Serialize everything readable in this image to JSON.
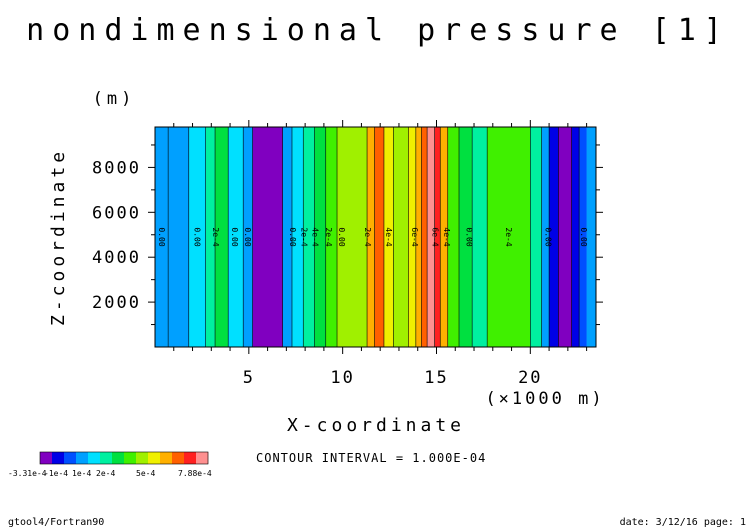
{
  "chart_data": {
    "type": "contour",
    "title": "nondimensional pressure [1]",
    "xlabel": "X-coordinate",
    "xunit": "(×1000 m)",
    "ylabel": "Z-coordinate",
    "yunit": "(m)",
    "xlim": [
      0,
      23.5
    ],
    "ylim": [
      0,
      9800
    ],
    "x_ticks": [
      5,
      10,
      15,
      20
    ],
    "x_tick_labels": [
      "5",
      "10",
      "15",
      "20"
    ],
    "y_ticks": [
      2000,
      4000,
      6000,
      8000
    ],
    "y_tick_labels": [
      "2000",
      "4000",
      "6000",
      "8000"
    ],
    "contour_interval_text": "CONTOUR INTERVAL = 1.000E-04",
    "colorbar": {
      "colors": [
        "#8000c0",
        "#0000e6",
        "#0050ff",
        "#00a0ff",
        "#00e0ff",
        "#00f0a0",
        "#00e040",
        "#40f000",
        "#a0f000",
        "#f0f000",
        "#ffb000",
        "#ff6000",
        "#ff2020",
        "#ff9090"
      ],
      "labels": [
        "-3.31e-4",
        "-1e-4",
        "1e-4",
        "2e-4",
        "5e-4",
        "7.88e-4"
      ]
    },
    "vertical_bands": [
      {
        "x0": 0,
        "x1": 0.7,
        "color": "#00a0ff"
      },
      {
        "x0": 0.7,
        "x1": 1.8,
        "color": "#00a0ff"
      },
      {
        "x0": 1.8,
        "x1": 2.7,
        "color": "#00e0ff"
      },
      {
        "x0": 2.7,
        "x1": 3.2,
        "color": "#00f0a0"
      },
      {
        "x0": 3.2,
        "x1": 3.9,
        "color": "#00e040"
      },
      {
        "x0": 3.9,
        "x1": 4.7,
        "color": "#00e0ff"
      },
      {
        "x0": 4.7,
        "x1": 5.2,
        "color": "#00a0ff"
      },
      {
        "x0": 5.2,
        "x1": 6.8,
        "color": "#8000c0"
      },
      {
        "x0": 6.8,
        "x1": 7.3,
        "color": "#00a0ff"
      },
      {
        "x0": 7.3,
        "x1": 7.9,
        "color": "#00e0ff"
      },
      {
        "x0": 7.9,
        "x1": 8.5,
        "color": "#00f0a0"
      },
      {
        "x0": 8.5,
        "x1": 9.1,
        "color": "#00e040"
      },
      {
        "x0": 9.1,
        "x1": 9.7,
        "color": "#40f000"
      },
      {
        "x0": 9.7,
        "x1": 11.3,
        "color": "#a0f000"
      },
      {
        "x0": 11.3,
        "x1": 11.7,
        "color": "#ffb000"
      },
      {
        "x0": 11.7,
        "x1": 12.2,
        "color": "#ff6000"
      },
      {
        "x0": 12.2,
        "x1": 12.7,
        "color": "#f0f000"
      },
      {
        "x0": 12.7,
        "x1": 13.5,
        "color": "#a0f000"
      },
      {
        "x0": 13.5,
        "x1": 13.9,
        "color": "#f0f000"
      },
      {
        "x0": 13.9,
        "x1": 14.2,
        "color": "#ffb000"
      },
      {
        "x0": 14.2,
        "x1": 14.5,
        "color": "#ff6000"
      },
      {
        "x0": 14.5,
        "x1": 14.9,
        "color": "#ff9090"
      },
      {
        "x0": 14.9,
        "x1": 15.2,
        "color": "#ff2020"
      },
      {
        "x0": 15.2,
        "x1": 15.6,
        "color": "#ffb000"
      },
      {
        "x0": 15.6,
        "x1": 16.2,
        "color": "#40f000"
      },
      {
        "x0": 16.2,
        "x1": 16.9,
        "color": "#00e040"
      },
      {
        "x0": 16.9,
        "x1": 17.7,
        "color": "#00f0a0"
      },
      {
        "x0": 17.7,
        "x1": 20.0,
        "color": "#40f000"
      },
      {
        "x0": 20.0,
        "x1": 20.6,
        "color": "#00f0a0"
      },
      {
        "x0": 20.6,
        "x1": 21.0,
        "color": "#00a0ff"
      },
      {
        "x0": 21.0,
        "x1": 21.5,
        "color": "#0000e6"
      },
      {
        "x0": 21.5,
        "x1": 22.2,
        "color": "#8000c0"
      },
      {
        "x0": 22.2,
        "x1": 22.6,
        "color": "#0000e6"
      },
      {
        "x0": 22.6,
        "x1": 23.0,
        "color": "#0050ff"
      },
      {
        "x0": 23.0,
        "x1": 23.5,
        "color": "#00a0ff"
      }
    ],
    "contour_lines": [
      0.7,
      1.8,
      2.7,
      3.2,
      3.9,
      4.7,
      5.2,
      6.8,
      7.3,
      7.9,
      8.5,
      9.1,
      9.7,
      11.3,
      11.7,
      12.2,
      12.7,
      13.5,
      13.9,
      14.2,
      14.5,
      14.9,
      15.2,
      15.6,
      16.2,
      16.9,
      17.7,
      20.0,
      20.6,
      21.0,
      21.5,
      22.2,
      22.6
    ],
    "contour_labels": [
      {
        "x": 0.2,
        "text": "0.00"
      },
      {
        "x": 2.1,
        "text": "0.00"
      },
      {
        "x": 3.1,
        "text": "2e-4"
      },
      {
        "x": 4.1,
        "text": "0.00"
      },
      {
        "x": 4.8,
        "text": "0.00"
      },
      {
        "x": 7.2,
        "text": "0.00"
      },
      {
        "x": 7.8,
        "text": "2e-4"
      },
      {
        "x": 8.4,
        "text": "4e-4"
      },
      {
        "x": 9.1,
        "text": "2e-4"
      },
      {
        "x": 9.8,
        "text": "0.00"
      },
      {
        "x": 11.2,
        "text": "2e-4"
      },
      {
        "x": 12.3,
        "text": "4e-4"
      },
      {
        "x": 13.7,
        "text": "6e-4"
      },
      {
        "x": 14.8,
        "text": "6e-4"
      },
      {
        "x": 15.4,
        "text": "4e-4"
      },
      {
        "x": 16.6,
        "text": "0.00"
      },
      {
        "x": 18.7,
        "text": "2e-4"
      },
      {
        "x": 20.8,
        "text": "0.00"
      },
      {
        "x": 22.7,
        "text": "0.00"
      }
    ]
  },
  "footer": {
    "left": "gtool4/Fortran90",
    "right": "date: 3/12/16 page: 1"
  }
}
